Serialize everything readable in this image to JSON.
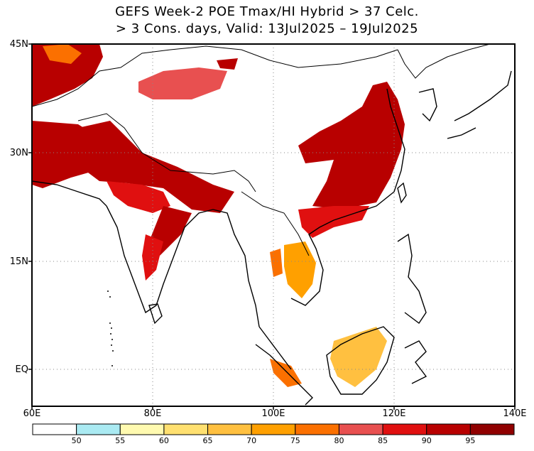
{
  "title": {
    "line1": "GEFS Week-2 POE Tmax/HI Hybrid > 37 Celc.",
    "line2": "> 3 Cons. days, Valid: 13Jul2025 – 19Jul2025"
  },
  "axes": {
    "lat_labels": [
      "45N",
      "30N",
      "15N",
      "EQ"
    ],
    "lon_labels": [
      "60E",
      "80E",
      "100E",
      "120E",
      "140E"
    ]
  },
  "legend": {
    "values": [
      "50",
      "55",
      "60",
      "65",
      "70",
      "75",
      "80",
      "85",
      "90",
      "95"
    ],
    "colors": [
      "#ffffff",
      "#aaeaf2",
      "#fffab0",
      "#ffe070",
      "#ffc040",
      "#ffa000",
      "#fb7000",
      "#e85050",
      "#e01010",
      "#b80000",
      "#900000"
    ]
  },
  "colors": {
    "land_outline": "#000000",
    "background": "#ffffff"
  }
}
